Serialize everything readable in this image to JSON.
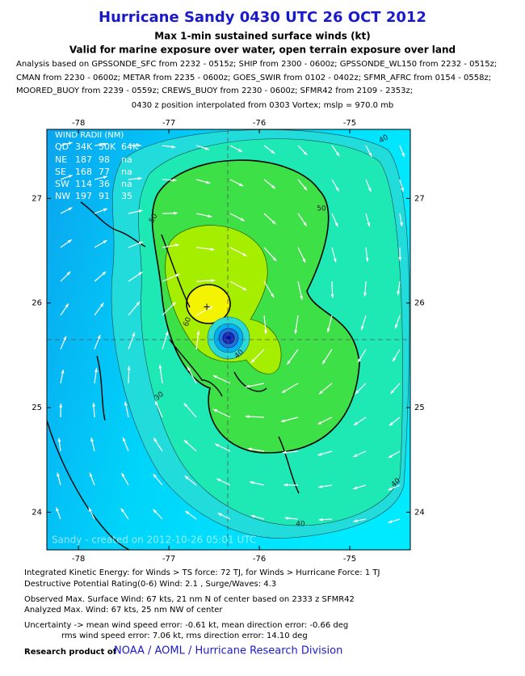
{
  "header": {
    "title": "Hurricane Sandy 0430 UTC 26 OCT 2012",
    "subtitle": "Max 1-min sustained surface winds (kt)",
    "subtitle2": "Valid for marine exposure over water, open terrain exposure over land",
    "analysis": [
      "Analysis based on GPSSONDE_SFC from 2232 - 0515z; SHIP from 2300 - 0600z; GPSSONDE_WL150 from 2232 - 0515z;",
      "CMAN from 2230 - 0600z; METAR from 2235 - 0600z; GOES_SWIR from 0102 - 0402z; SFMR_AFRC from 0154 - 0558z;",
      "MOORED_BUOY from 2239 - 0559z; CREWS_BUOY from 2230 - 0600z; SFMR42 from 2109 - 2353z;"
    ],
    "position_note": "0430 z position interpolated from 0303 Vortex; mslp = 970.0 mb"
  },
  "map": {
    "lonlim": [
      -78.35,
      -74.33
    ],
    "latlim": [
      23.64,
      27.66
    ],
    "lonticks": [
      -78,
      -77,
      -76,
      -75
    ],
    "latticks": [
      27,
      26,
      25,
      24
    ],
    "contour_labels": [
      "50",
      "50",
      "40",
      "60",
      "40",
      "30",
      "40",
      "40"
    ],
    "watermark": "Sandy - created on 2012-10-26 05:01 UTC",
    "wind_radii": {
      "title": "WIND RADII (NM)",
      "header": [
        "QD",
        "34K",
        "50K",
        "64K"
      ],
      "rows": [
        [
          "NE",
          "187",
          "98",
          "na"
        ],
        [
          "SE",
          "168",
          "77",
          "na"
        ],
        [
          "SW",
          "114",
          "36",
          "na"
        ],
        [
          "NW",
          "197",
          "91",
          "35"
        ]
      ]
    }
  },
  "footer": {
    "lines": [
      "Integrated Kinetic Energy: for Winds > TS force: 72 TJ, for Winds > Hurricane Force: 1 TJ",
      "Destructive Potential Rating(0-6)  Wind: 2.1 , Surge/Waves: 4.3",
      "Observed Max. Surface Wind: 67 kts, 21 nm N of center based on 2333 z SFMR42",
      "Analyzed Max. Wind: 67 kts, 25 nm  NW of center",
      "Uncertainty -> mean wind speed error:  -0.61 kt, mean direction error:  -0.66 deg",
      "rms wind speed error: 7.06 kt, rms direction error: 14.10 deg"
    ],
    "credit_prefix": "Research product of",
    "credit": "NOAA / AOML / Hurricane Research Division"
  }
}
